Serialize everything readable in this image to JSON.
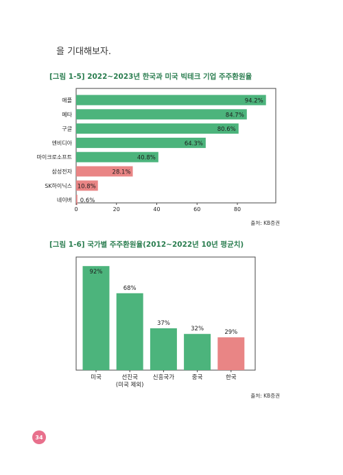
{
  "intro_text": "을 기대해보자.",
  "fig1": {
    "title": "[그림 1-5] 2022~2023년 한국과 미국 빅테크 기업 주주환원율",
    "source": "출처: KB증권",
    "colors": {
      "us": "#4cb47c",
      "kr": "#e98585",
      "axis": "#444444"
    },
    "chart_data": {
      "type": "bar",
      "orientation": "horizontal",
      "categories": [
        "애플",
        "메타",
        "구글",
        "엔비디아",
        "마이크로소프트",
        "삼성전자",
        "SK하이닉스",
        "네이버"
      ],
      "values": [
        94.2,
        84.7,
        80.6,
        64.3,
        40.8,
        28.1,
        10.8,
        0.6
      ],
      "value_labels": [
        "94.2%",
        "84.7%",
        "80.6%",
        "64.3%",
        "40.8%",
        "28.1%",
        "10.8%",
        "0.6%"
      ],
      "groups": [
        "us",
        "us",
        "us",
        "us",
        "us",
        "kr",
        "kr",
        "kr"
      ],
      "xticks": [
        "0",
        "20",
        "40",
        "60",
        "80"
      ],
      "xlim": [
        0,
        100
      ],
      "grid": false
    }
  },
  "fig2": {
    "title": "[그림 1-6] 국가별 주주환원율(2012~2022년 10년 평균치)",
    "source": "출처: KB증권",
    "colors": {
      "us": "#4cb47c",
      "kr": "#e98585",
      "axis": "#444444"
    },
    "chart_data": {
      "type": "bar",
      "orientation": "vertical",
      "categories": [
        "미국",
        "선진국",
        "신흥국가",
        "중국",
        "한국"
      ],
      "category_sublabels": [
        "",
        "(미국 제외)",
        "",
        "",
        ""
      ],
      "values": [
        92,
        68,
        37,
        32,
        29
      ],
      "value_labels": [
        "92%",
        "68%",
        "37%",
        "32%",
        "29%"
      ],
      "groups": [
        "us",
        "us",
        "us",
        "us",
        "kr"
      ],
      "ylim": [
        0,
        100
      ],
      "grid": false
    }
  },
  "page_number": "34"
}
